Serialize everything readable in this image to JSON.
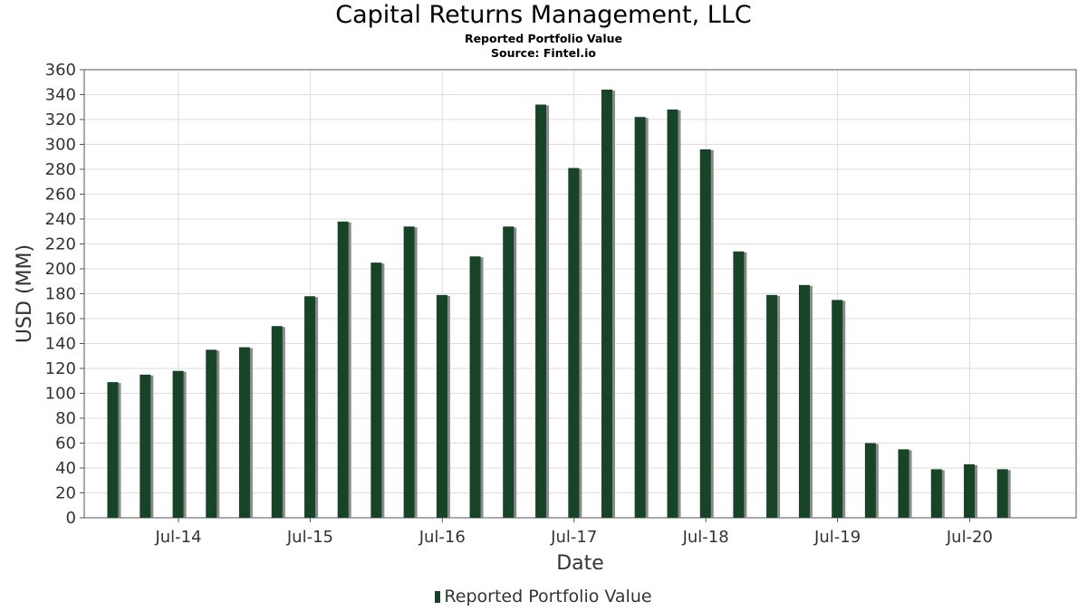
{
  "header": {
    "title": "Capital Returns Management, LLC",
    "subtitle": "Reported Portfolio Value",
    "source": "Source: Fintel.io"
  },
  "colors": {
    "bar": "#174327",
    "bar_shadow": "#8a8a8a",
    "grid": "#dddddd",
    "axis": "#555555"
  },
  "chart_data": {
    "type": "bar",
    "title": "Capital Returns Management, LLC",
    "subtitle": "Reported Portfolio Value",
    "xlabel": "Date",
    "ylabel": "USD (MM)",
    "ylim": [
      0,
      360
    ],
    "yticks": [
      0,
      20,
      40,
      60,
      80,
      100,
      120,
      140,
      160,
      180,
      200,
      220,
      240,
      260,
      280,
      300,
      320,
      340,
      360
    ],
    "xtick_labels": [
      "Jul-14",
      "Jul-15",
      "Jul-16",
      "Jul-17",
      "Jul-18",
      "Jul-19",
      "Jul-20"
    ],
    "xtick_dates": [
      "2014-07-01",
      "2015-07-01",
      "2016-07-01",
      "2017-07-01",
      "2018-07-01",
      "2019-07-01",
      "2020-07-01"
    ],
    "x_range": [
      "2013-10-13",
      "2021-04-22"
    ],
    "grid": true,
    "legend_position": "bottom",
    "series": [
      {
        "name": "Reported Portfolio Value",
        "x": [
          "2013-12-31",
          "2014-03-31",
          "2014-06-30",
          "2014-09-30",
          "2014-12-31",
          "2015-03-31",
          "2015-06-30",
          "2015-09-30",
          "2015-12-31",
          "2016-03-31",
          "2016-06-30",
          "2016-09-30",
          "2016-12-31",
          "2017-03-31",
          "2017-06-30",
          "2017-09-30",
          "2017-12-31",
          "2018-03-31",
          "2018-06-30",
          "2018-09-30",
          "2018-12-31",
          "2019-03-31",
          "2019-06-30",
          "2019-09-30",
          "2019-12-31",
          "2020-03-31",
          "2020-06-30",
          "2020-09-30"
        ],
        "values": [
          109,
          115,
          118,
          135,
          137,
          154,
          178,
          238,
          205,
          234,
          179,
          210,
          234,
          332,
          281,
          344,
          322,
          328,
          296,
          214,
          179,
          187,
          175,
          60,
          55,
          39,
          43,
          39
        ]
      }
    ]
  }
}
